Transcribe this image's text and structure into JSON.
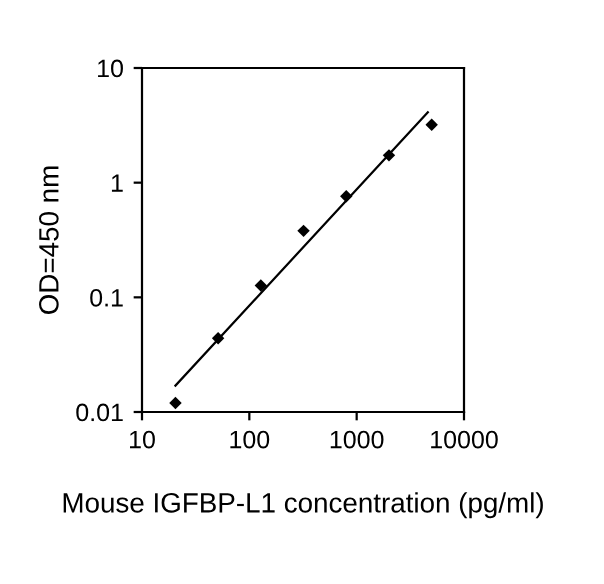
{
  "chart_data": {
    "type": "scatter",
    "xlabel": "Mouse IGFBP-L1 concentration (pg/ml)",
    "ylabel": "OD=450 nm",
    "log": "xy",
    "grid": false,
    "legend": false,
    "series": [
      {
        "marker": "diamond",
        "color": "#000000",
        "x": [
          20.5,
          51.2,
          128,
          320,
          800,
          2000,
          5000
        ],
        "values": [
          0.012,
          0.044,
          0.127,
          0.38,
          0.76,
          1.73,
          3.2
        ]
      },
      {
        "type": "line",
        "marker": "none",
        "color": "#000000",
        "line_style": "solid",
        "x": [
          20.5,
          4600
        ],
        "values": [
          0.017,
          4.1
        ]
      }
    ],
    "xlim": [
      10,
      10000
    ],
    "xticks": [
      10,
      100,
      1000,
      10000
    ],
    "ylim": [
      0.01,
      10
    ],
    "yticks": [
      0.01,
      0.1,
      1,
      10
    ]
  }
}
